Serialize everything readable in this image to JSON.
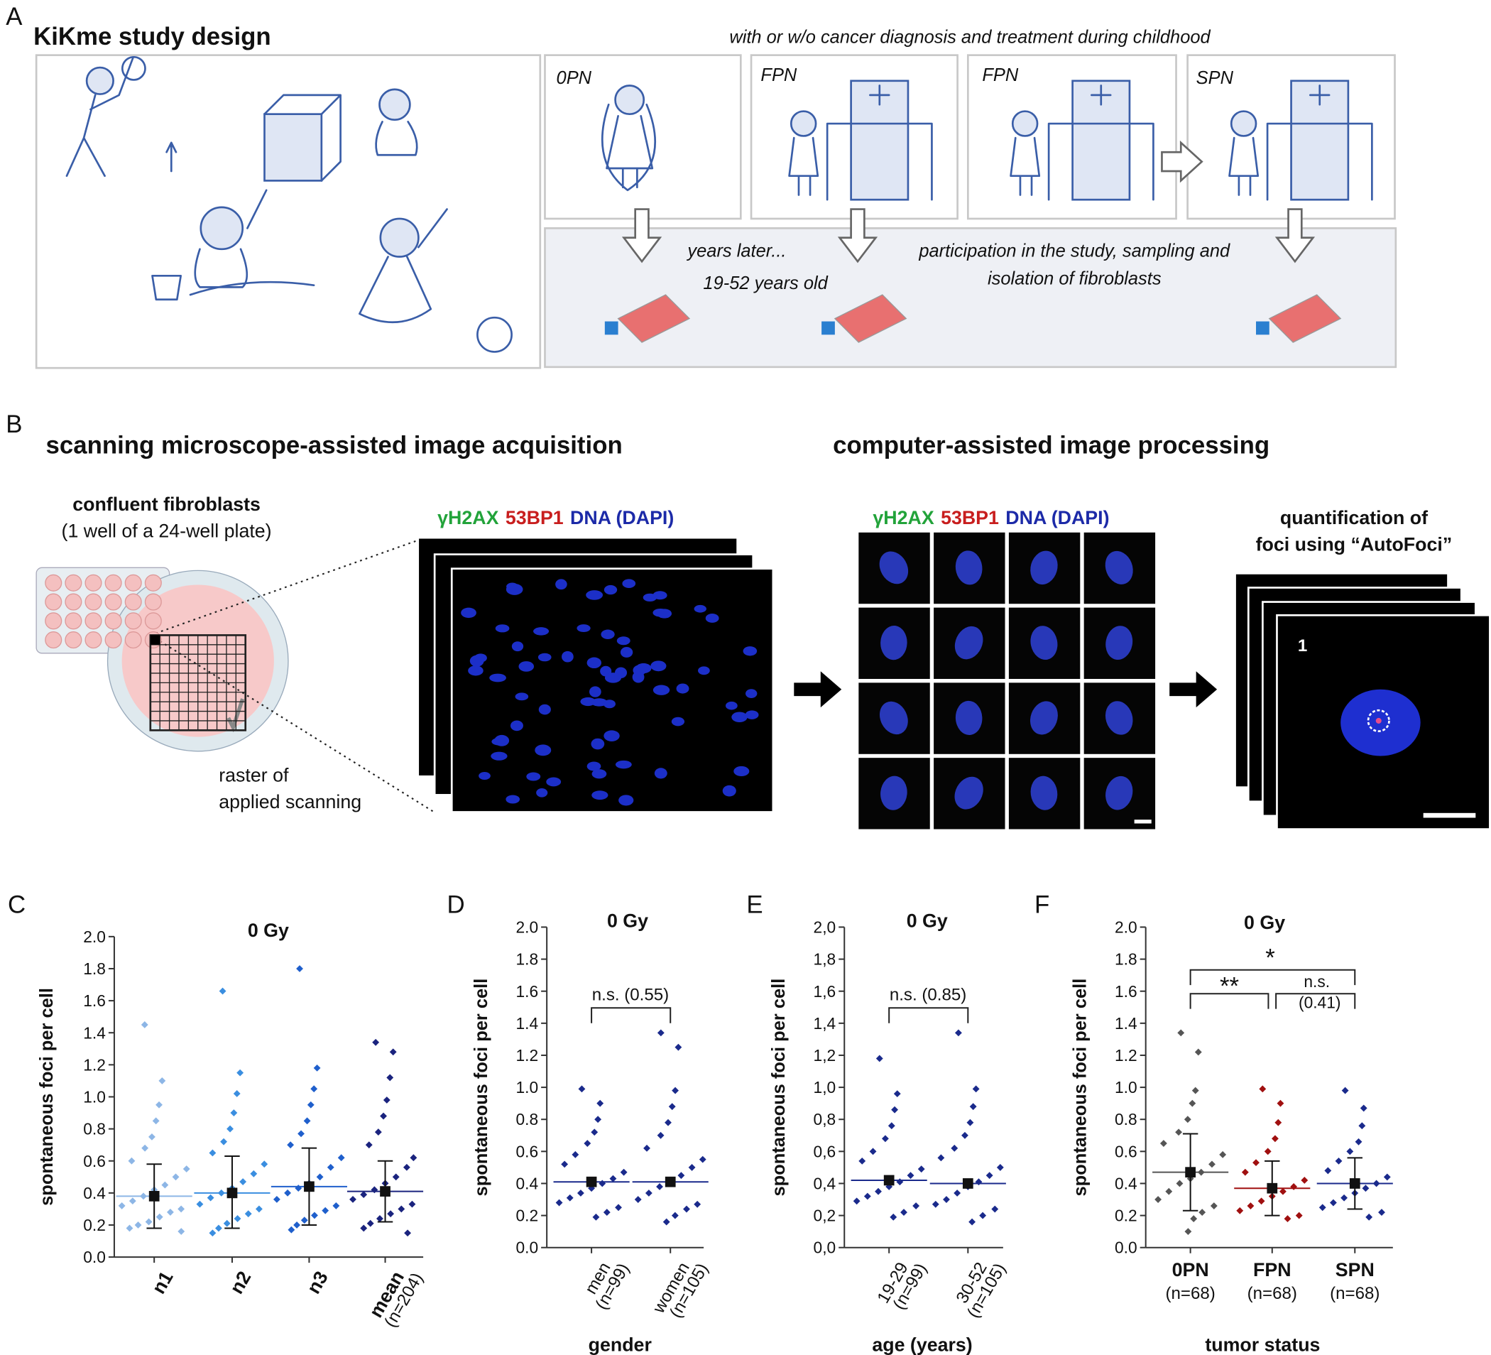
{
  "panel_a": {
    "label": "A",
    "title": "KiKme study design",
    "subtitle": "with or w/o cancer diagnosis and treatment during childhood",
    "groups": [
      "0PN",
      "FPN",
      "FPN",
      "SPN"
    ],
    "notes": [
      "years later...",
      "19-52 years old",
      "participation in the study, sampling and",
      "isolation of fibroblasts"
    ]
  },
  "panel_b": {
    "label": "B",
    "heading_left": "scanning microscope-assisted image acquisition",
    "heading_right": "computer-assisted image processing",
    "plate_title": "confluent fibroblasts",
    "plate_subtitle": "(1 well of a 24-well plate)",
    "raster_note": [
      "raster of",
      "applied scanning"
    ],
    "stain_labels": [
      {
        "text": "γH2AX",
        "color": "#22a33a"
      },
      {
        "text": "53BP1",
        "color": "#c81e1e"
      },
      {
        "text": "DNA (DAPI)",
        "color": "#1c2aa8"
      }
    ],
    "quant_title": [
      "quantification of",
      "foci using “AutoFoci”"
    ],
    "cell_number": "1"
  },
  "chart_data": [
    {
      "type": "strip",
      "panel_label": "C",
      "title": "0 Gy",
      "ylabel": "spontaneous foci per cell",
      "categories": [
        "n1",
        "n2",
        "n3",
        "mean"
      ],
      "sublabels": [
        null,
        null,
        null,
        "(n=204)"
      ],
      "ylim": [
        0,
        2
      ],
      "yticks": [
        {
          "value": 0,
          "label": "0.0"
        },
        {
          "value": 0.2,
          "label": "0.2"
        },
        {
          "value": 0.4,
          "label": "0.4"
        },
        {
          "value": 0.6,
          "label": "0.6"
        },
        {
          "value": 0.8,
          "label": "0.8"
        },
        {
          "value": 1,
          "label": "1.0"
        },
        {
          "value": 1.2,
          "label": "1.2"
        },
        {
          "value": 1.4,
          "label": "1.4"
        },
        {
          "value": 1.6,
          "label": "1.6"
        },
        {
          "value": 1.8,
          "label": "1.8"
        },
        {
          "value": 2,
          "label": "2.0"
        }
      ],
      "groups": [
        {
          "color": "#8db6e6",
          "mean": 0.38,
          "whisker": [
            0.18,
            0.58
          ],
          "values": [
            1.45,
            1.1,
            0.95,
            0.85,
            0.75,
            0.68,
            0.6,
            0.55,
            0.5,
            0.45,
            0.42,
            0.38,
            0.35,
            0.32,
            0.3,
            0.28,
            0.25,
            0.22,
            0.2,
            0.18,
            0.16
          ]
        },
        {
          "color": "#3a8ee0",
          "mean": 0.4,
          "whisker": [
            0.18,
            0.63
          ],
          "values": [
            1.66,
            1.15,
            1.02,
            0.9,
            0.8,
            0.72,
            0.65,
            0.58,
            0.52,
            0.47,
            0.43,
            0.4,
            0.37,
            0.33,
            0.3,
            0.27,
            0.24,
            0.21,
            0.18,
            0.15
          ]
        },
        {
          "color": "#1f5fcc",
          "mean": 0.44,
          "whisker": [
            0.2,
            0.68
          ],
          "values": [
            1.8,
            1.18,
            1.05,
            0.95,
            0.85,
            0.77,
            0.7,
            0.62,
            0.56,
            0.5,
            0.46,
            0.43,
            0.4,
            0.36,
            0.32,
            0.29,
            0.26,
            0.23,
            0.2,
            0.17
          ]
        },
        {
          "color": "#1a237e",
          "mean": 0.41,
          "whisker": [
            0.22,
            0.6
          ],
          "values": [
            1.34,
            1.28,
            1.12,
            0.98,
            0.88,
            0.78,
            0.7,
            0.62,
            0.56,
            0.5,
            0.46,
            0.42,
            0.39,
            0.36,
            0.33,
            0.3,
            0.27,
            0.24,
            0.21,
            0.18,
            0.15
          ]
        }
      ],
      "annotations": []
    },
    {
      "type": "strip",
      "panel_label": "D",
      "title": "0 Gy",
      "ylabel": "spontaneous foci per cell",
      "xlabel": "gender",
      "categories": [
        "men",
        "women"
      ],
      "sublabels": [
        "(n=99)",
        "(n=105)"
      ],
      "ylim": [
        0,
        2
      ],
      "yticks": [
        {
          "value": 0,
          "label": "0.0"
        },
        {
          "value": 0.2,
          "label": "0.2"
        },
        {
          "value": 0.4,
          "label": "0.4"
        },
        {
          "value": 0.6,
          "label": "0.6"
        },
        {
          "value": 0.8,
          "label": "0.8"
        },
        {
          "value": 1,
          "label": "1.0"
        },
        {
          "value": 1.2,
          "label": "1.2"
        },
        {
          "value": 1.4,
          "label": "1.4"
        },
        {
          "value": 1.6,
          "label": "1.6"
        },
        {
          "value": 1.8,
          "label": "1.8"
        },
        {
          "value": 2,
          "label": "2.0"
        }
      ],
      "groups": [
        {
          "color": "#1a2a8c",
          "mean": 0.41,
          "values": [
            0.99,
            0.9,
            0.8,
            0.72,
            0.65,
            0.58,
            0.52,
            0.47,
            0.43,
            0.4,
            0.37,
            0.34,
            0.31,
            0.28,
            0.25,
            0.22,
            0.19
          ]
        },
        {
          "color": "#1a2a8c",
          "mean": 0.41,
          "values": [
            1.34,
            1.25,
            0.98,
            0.88,
            0.78,
            0.7,
            0.62,
            0.55,
            0.5,
            0.45,
            0.41,
            0.38,
            0.34,
            0.3,
            0.27,
            0.24,
            0.2,
            0.16
          ]
        }
      ],
      "annotations": [
        "n.s. (0.55)"
      ]
    },
    {
      "type": "strip",
      "panel_label": "E",
      "title": "0 Gy",
      "ylabel": "spontaneous foci per cell",
      "xlabel": "age (years)",
      "categories": [
        "19-29",
        "30-52"
      ],
      "sublabels": [
        "(n=99)",
        "(n=105)"
      ],
      "ylim": [
        0,
        2
      ],
      "yticks": [
        {
          "value": 0,
          "label": "0,0"
        },
        {
          "value": 0.2,
          "label": "0,2"
        },
        {
          "value": 0.4,
          "label": "0,4"
        },
        {
          "value": 0.6,
          "label": "0,6"
        },
        {
          "value": 0.8,
          "label": "0,8"
        },
        {
          "value": 1,
          "label": "1,0"
        },
        {
          "value": 1.2,
          "label": "1,2"
        },
        {
          "value": 1.4,
          "label": "1,4"
        },
        {
          "value": 1.6,
          "label": "1,6"
        },
        {
          "value": 1.8,
          "label": "1,8"
        },
        {
          "value": 2,
          "label": "2,0"
        }
      ],
      "groups": [
        {
          "color": "#1a2a8c",
          "mean": 0.42,
          "values": [
            1.18,
            0.96,
            0.86,
            0.76,
            0.68,
            0.6,
            0.54,
            0.49,
            0.45,
            0.41,
            0.38,
            0.35,
            0.32,
            0.29,
            0.26,
            0.22,
            0.19
          ]
        },
        {
          "color": "#1a2a8c",
          "mean": 0.4,
          "values": [
            1.34,
            0.99,
            0.88,
            0.78,
            0.7,
            0.62,
            0.56,
            0.5,
            0.45,
            0.41,
            0.38,
            0.34,
            0.3,
            0.27,
            0.24,
            0.2,
            0.16
          ]
        }
      ],
      "annotations": [
        "n.s. (0.85)"
      ]
    },
    {
      "type": "strip",
      "panel_label": "F",
      "title": "0 Gy",
      "ylabel": "spontaneous foci per cell",
      "xlabel": "tumor status",
      "categories": [
        "0PN",
        "FPN",
        "SPN"
      ],
      "sublabels": [
        "(n=68)",
        "(n=68)",
        "(n=68)"
      ],
      "ylim": [
        0,
        2
      ],
      "yticks": [
        {
          "value": 0,
          "label": "0.0"
        },
        {
          "value": 0.2,
          "label": "0.2"
        },
        {
          "value": 0.4,
          "label": "0.4"
        },
        {
          "value": 0.6,
          "label": "0.6"
        },
        {
          "value": 0.8,
          "label": "0.8"
        },
        {
          "value": 1,
          "label": "1.0"
        },
        {
          "value": 1.2,
          "label": "1.2"
        },
        {
          "value": 1.4,
          "label": "1.4"
        },
        {
          "value": 1.6,
          "label": "1.6"
        },
        {
          "value": 1.8,
          "label": "1.8"
        },
        {
          "value": 2,
          "label": "2.0"
        }
      ],
      "groups": [
        {
          "color": "#555555",
          "mean": 0.47,
          "whisker": [
            0.23,
            0.71
          ],
          "values": [
            1.34,
            1.22,
            0.98,
            0.9,
            0.8,
            0.72,
            0.65,
            0.58,
            0.52,
            0.47,
            0.43,
            0.4,
            0.35,
            0.3,
            0.26,
            0.22,
            0.18,
            0.1
          ]
        },
        {
          "color": "#a01010",
          "mean": 0.37,
          "whisker": [
            0.2,
            0.54
          ],
          "values": [
            0.99,
            0.9,
            0.78,
            0.68,
            0.6,
            0.53,
            0.47,
            0.42,
            0.38,
            0.35,
            0.32,
            0.29,
            0.26,
            0.23,
            0.2,
            0.18
          ]
        },
        {
          "color": "#1a2a8c",
          "mean": 0.4,
          "whisker": [
            0.24,
            0.56
          ],
          "values": [
            0.98,
            0.87,
            0.76,
            0.66,
            0.6,
            0.54,
            0.48,
            0.44,
            0.4,
            0.37,
            0.34,
            0.31,
            0.28,
            0.25,
            0.22,
            0.19
          ]
        }
      ],
      "annotations": [
        "**",
        "n.s.",
        "(0.41)",
        "*"
      ]
    }
  ]
}
